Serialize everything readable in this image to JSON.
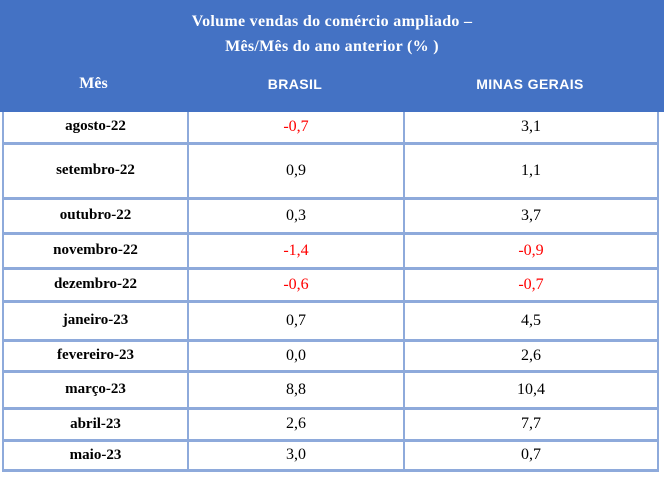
{
  "header": {
    "title_line1": "Volume vendas do comércio ampliado –",
    "title_line2": "Mês/Mês do ano anterior (% )",
    "columns": [
      "Mês",
      "BRASIL",
      "MINAS GERAIS"
    ]
  },
  "rows": [
    {
      "month": "agosto-22",
      "brasil": "-0,7",
      "brasil_color": "#FF0000",
      "mg": "3,1",
      "mg_color": "#000000"
    },
    {
      "month": "setembro-22",
      "brasil": "0,9",
      "brasil_color": "#000000",
      "mg": "1,1",
      "mg_color": "#000000"
    },
    {
      "month": "outubro-22",
      "brasil": "0,3",
      "brasil_color": "#000000",
      "mg": "3,7",
      "mg_color": "#000000"
    },
    {
      "month": "novembro-22",
      "brasil": "-1,4",
      "brasil_color": "#FF0000",
      "mg": "-0,9",
      "mg_color": "#FF0000"
    },
    {
      "month": "dezembro-22",
      "brasil": "-0,6",
      "brasil_color": "#FF0000",
      "mg": "-0,7",
      "mg_color": "#FF0000"
    },
    {
      "month": "janeiro-23",
      "brasil": "0,7",
      "brasil_color": "#000000",
      "mg": "4,5",
      "mg_color": "#000000"
    },
    {
      "month": "fevereiro-23",
      "brasil": "0,0",
      "brasil_color": "#000000",
      "mg": "2,6",
      "mg_color": "#000000"
    },
    {
      "month": "março-23",
      "brasil": "8,8",
      "brasil_color": "#000000",
      "mg": "10,4",
      "mg_color": "#000000"
    },
    {
      "month": "abril-23",
      "brasil": "2,6",
      "brasil_color": "#000000",
      "mg": "7,7",
      "mg_color": "#000000"
    },
    {
      "month": "maio-23",
      "brasil": "3,0",
      "brasil_color": "#000000",
      "mg": "0,7",
      "mg_color": "#000000"
    }
  ],
  "colors": {
    "header_bg": "#4472C4",
    "header_text": "#FFFFFF",
    "border": "#8EAADB",
    "negative": "#FF0000",
    "text": "#000000",
    "row_bg": "#FFFFFF"
  },
  "chart_data": {
    "type": "table",
    "title": "Volume vendas do comércio ampliado – Mês/Mês do ano anterior (%)",
    "columns": [
      "Mês",
      "BRASIL",
      "MINAS GERAIS"
    ],
    "categories": [
      "agosto-22",
      "setembro-22",
      "outubro-22",
      "novembro-22",
      "dezembro-22",
      "janeiro-23",
      "fevereiro-23",
      "março-23",
      "abril-23",
      "maio-23"
    ],
    "series": [
      {
        "name": "BRASIL",
        "values": [
          -0.7,
          0.9,
          0.3,
          -1.4,
          -0.6,
          0.7,
          0.0,
          8.8,
          2.6,
          3.0
        ]
      },
      {
        "name": "MINAS GERAIS",
        "values": [
          3.1,
          1.1,
          3.7,
          -0.9,
          -0.7,
          4.5,
          2.6,
          10.4,
          7.7,
          0.7
        ]
      }
    ],
    "annotations": "negative values rendered in red"
  }
}
